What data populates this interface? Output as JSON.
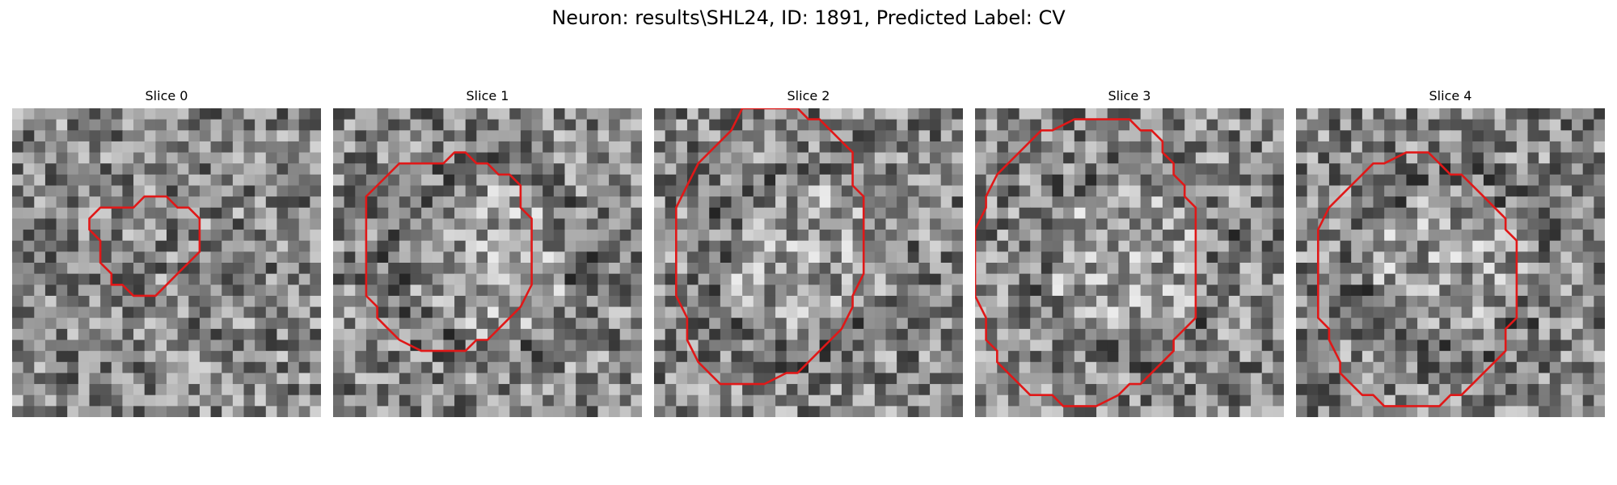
{
  "figure": {
    "title": "Neuron: results\\SHL24, ID: 1891, Predicted Label: CV",
    "contour_color": "#e01818",
    "colormap": "grayscale"
  },
  "panels": [
    {
      "title": "Slice 0",
      "contour": [
        [
          12,
          8
        ],
        [
          14,
          8
        ],
        [
          15,
          9
        ],
        [
          16,
          9
        ],
        [
          17,
          10
        ],
        [
          17,
          13
        ],
        [
          16,
          14
        ],
        [
          15,
          15
        ],
        [
          14,
          16
        ],
        [
          13,
          17
        ],
        [
          11,
          17
        ],
        [
          10,
          16
        ],
        [
          9,
          16
        ],
        [
          9,
          15
        ],
        [
          8,
          14
        ],
        [
          8,
          12
        ],
        [
          7,
          11
        ],
        [
          7,
          10
        ],
        [
          8,
          9
        ],
        [
          9,
          9
        ],
        [
          11,
          9
        ]
      ]
    },
    {
      "title": "Slice 1",
      "contour": [
        [
          9,
          5
        ],
        [
          10,
          5
        ],
        [
          11,
          4
        ],
        [
          12,
          4
        ],
        [
          13,
          5
        ],
        [
          14,
          5
        ],
        [
          15,
          6
        ],
        [
          16,
          6
        ],
        [
          17,
          7
        ],
        [
          17,
          9
        ],
        [
          18,
          10
        ],
        [
          18,
          16
        ],
        [
          17,
          18
        ],
        [
          16,
          19
        ],
        [
          15,
          20
        ],
        [
          14,
          21
        ],
        [
          13,
          21
        ],
        [
          12,
          22
        ],
        [
          8,
          22
        ],
        [
          6,
          21
        ],
        [
          5,
          20
        ],
        [
          4,
          19
        ],
        [
          4,
          18
        ],
        [
          3,
          17
        ],
        [
          3,
          8
        ],
        [
          4,
          7
        ],
        [
          5,
          6
        ],
        [
          6,
          5
        ]
      ]
    },
    {
      "title": "Slice 2",
      "contour": [
        [
          8,
          0
        ],
        [
          13,
          0
        ],
        [
          14,
          1
        ],
        [
          15,
          1
        ],
        [
          17,
          3
        ],
        [
          18,
          4
        ],
        [
          18,
          6
        ],
        [
          18,
          7
        ],
        [
          19,
          8
        ],
        [
          19,
          15
        ],
        [
          18,
          17
        ],
        [
          18,
          18
        ],
        [
          17,
          20
        ],
        [
          16,
          21
        ],
        [
          14,
          23
        ],
        [
          13,
          24
        ],
        [
          12,
          24
        ],
        [
          10,
          25
        ],
        [
          7,
          25
        ],
        [
          6,
          25
        ],
        [
          5,
          24
        ],
        [
          4,
          23
        ],
        [
          3,
          21
        ],
        [
          3,
          20
        ],
        [
          3,
          19
        ],
        [
          2,
          17
        ],
        [
          2,
          15
        ],
        [
          2,
          9
        ],
        [
          3,
          7
        ],
        [
          4,
          5
        ],
        [
          6,
          3
        ],
        [
          7,
          2
        ]
      ]
    },
    {
      "title": "Slice 3",
      "contour": [
        [
          9,
          1
        ],
        [
          14,
          1
        ],
        [
          15,
          2
        ],
        [
          16,
          2
        ],
        [
          17,
          3
        ],
        [
          17,
          4
        ],
        [
          18,
          5
        ],
        [
          18,
          6
        ],
        [
          19,
          7
        ],
        [
          19,
          8
        ],
        [
          20,
          9
        ],
        [
          20,
          19
        ],
        [
          19,
          20
        ],
        [
          18,
          21
        ],
        [
          18,
          22
        ],
        [
          17,
          23
        ],
        [
          16,
          24
        ],
        [
          15,
          25
        ],
        [
          14,
          25
        ],
        [
          13,
          26
        ],
        [
          11,
          27
        ],
        [
          8,
          27
        ],
        [
          7,
          26
        ],
        [
          5,
          26
        ],
        [
          4,
          25
        ],
        [
          3,
          24
        ],
        [
          2,
          23
        ],
        [
          2,
          22
        ],
        [
          1,
          21
        ],
        [
          1,
          19
        ],
        [
          0,
          17
        ],
        [
          0,
          11
        ],
        [
          1,
          9
        ],
        [
          1,
          8
        ],
        [
          2,
          6
        ],
        [
          3,
          5
        ],
        [
          4,
          4
        ],
        [
          5,
          3
        ],
        [
          6,
          2
        ],
        [
          7,
          2
        ]
      ]
    },
    {
      "title": "Slice 4",
      "contour": [
        [
          10,
          4
        ],
        [
          12,
          4
        ],
        [
          13,
          5
        ],
        [
          14,
          6
        ],
        [
          15,
          6
        ],
        [
          17,
          8
        ],
        [
          18,
          9
        ],
        [
          19,
          10
        ],
        [
          19,
          11
        ],
        [
          20,
          12
        ],
        [
          20,
          19
        ],
        [
          19,
          20
        ],
        [
          19,
          22
        ],
        [
          18,
          23
        ],
        [
          17,
          24
        ],
        [
          16,
          25
        ],
        [
          15,
          26
        ],
        [
          14,
          26
        ],
        [
          13,
          27
        ],
        [
          8,
          27
        ],
        [
          7,
          26
        ],
        [
          6,
          26
        ],
        [
          5,
          25
        ],
        [
          4,
          24
        ],
        [
          4,
          23
        ],
        [
          3,
          21
        ],
        [
          3,
          20
        ],
        [
          2,
          19
        ],
        [
          2,
          11
        ],
        [
          3,
          9
        ],
        [
          4,
          8
        ],
        [
          5,
          7
        ],
        [
          6,
          6
        ],
        [
          7,
          5
        ],
        [
          8,
          5
        ]
      ]
    }
  ]
}
